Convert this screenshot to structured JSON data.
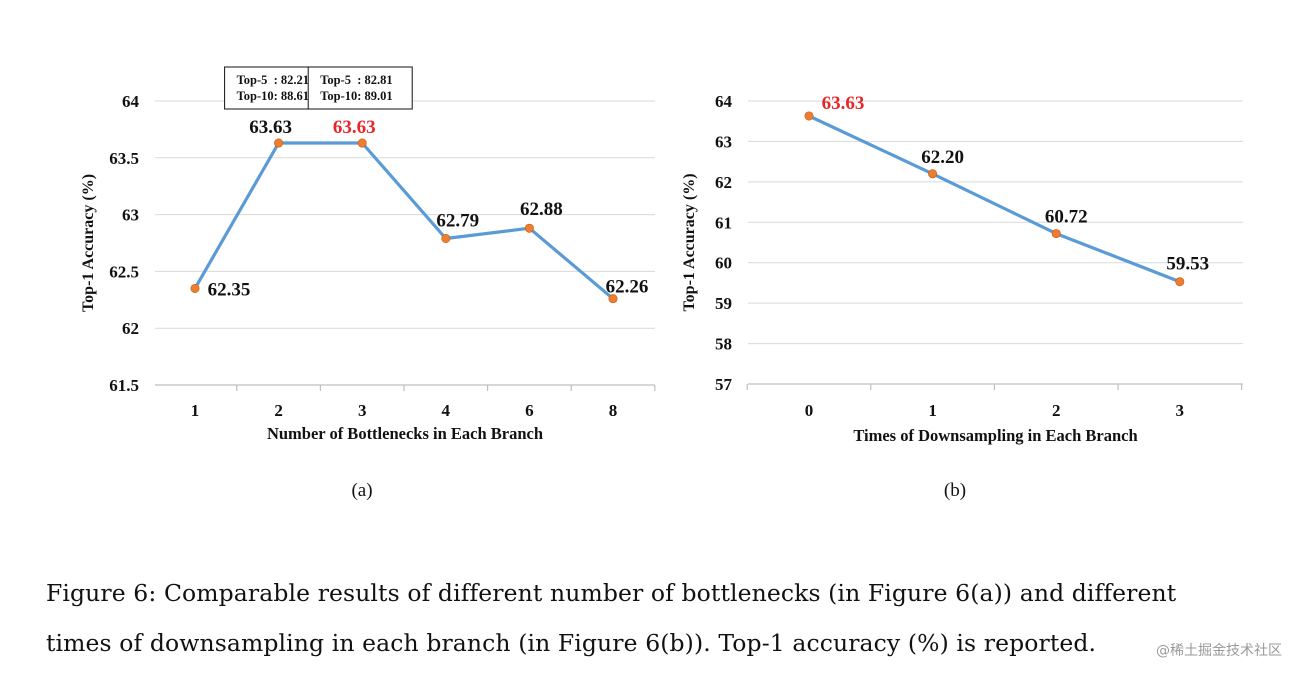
{
  "chart_data": [
    {
      "type": "line",
      "sublabel": "(a)",
      "xlabel": "Number of Bottlenecks in Each Branch",
      "ylabel": "Top-1 Accuracy (%)",
      "categories": [
        "1",
        "2",
        "3",
        "4",
        "6",
        "8"
      ],
      "values": [
        62.35,
        63.63,
        63.63,
        62.79,
        62.88,
        62.26
      ],
      "data_labels": [
        "62.35",
        "63.63",
        "63.63",
        "62.79",
        "62.88",
        "62.26"
      ],
      "highlight_index": 2,
      "ylim": [
        61.5,
        64
      ],
      "yticks": [
        "61.5",
        "62",
        "62.5",
        "63",
        "63.5",
        "64"
      ],
      "grid": true,
      "line_color": "#5b9bd5",
      "marker_color": "#ed7d31",
      "highlight_color": "#e8262a",
      "annotations": [
        {
          "category_index": 1,
          "lines": [
            "Top-5  : 82.21",
            "Top-10: 88.61"
          ]
        },
        {
          "category_index": 2,
          "lines": [
            "Top-5  : 82.81",
            "Top-10: 89.01"
          ]
        }
      ]
    },
    {
      "type": "line",
      "sublabel": "(b)",
      "xlabel": "Times of Downsampling in Each Branch",
      "ylabel": "Top-1 Accuracy (%)",
      "categories": [
        "0",
        "1",
        "2",
        "3"
      ],
      "values": [
        63.63,
        62.2,
        60.72,
        59.53
      ],
      "data_labels": [
        "63.63",
        "62.20",
        "60.72",
        "59.53"
      ],
      "highlight_index": 0,
      "ylim": [
        57,
        64
      ],
      "yticks": [
        "57",
        "58",
        "59",
        "60",
        "61",
        "62",
        "63",
        "64"
      ],
      "grid": true,
      "line_color": "#5b9bd5",
      "marker_color": "#ed7d31",
      "highlight_color": "#e8262a",
      "annotations": []
    }
  ],
  "caption": {
    "line1": "Figure 6: Comparable results of different number of bottlenecks (in Figure 6(a)) and different",
    "line2": "times of downsampling in each branch (in Figure 6(b)). Top-1 accuracy (%) is reported."
  },
  "watermark": "@稀土掘金技术社区"
}
